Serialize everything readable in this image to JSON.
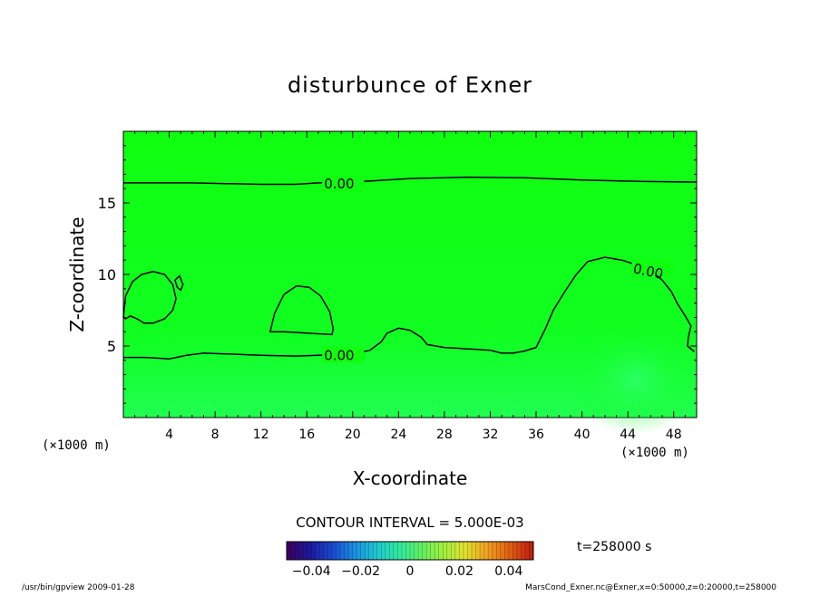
{
  "chart_data": {
    "type": "contour",
    "title": "disturbunce of Exner",
    "xlabel": "X-coordinate",
    "ylabel": "Z-coordinate",
    "x_unit_left": "(×1000 m)",
    "x_unit_right": "(×1000 m)",
    "xlim": [
      0,
      50
    ],
    "ylim": [
      0,
      20
    ],
    "x_ticks": [
      4,
      8,
      12,
      16,
      20,
      24,
      28,
      32,
      36,
      40,
      44,
      48
    ],
    "y_ticks": [
      5,
      10,
      15
    ],
    "background_color": "#00ff00",
    "contour_interval_text": "CONTOUR INTERVAL = 5.000E-03",
    "contours": [
      {
        "name": "upper-zero-line",
        "level_label": "0.00",
        "closed": false,
        "points": [
          [
            0,
            16.4
          ],
          [
            3,
            16.4
          ],
          [
            6,
            16.4
          ],
          [
            9,
            16.35
          ],
          [
            12,
            16.3
          ],
          [
            15,
            16.3
          ],
          [
            17,
            16.4
          ],
          [
            21,
            16.5
          ],
          [
            25,
            16.7
          ],
          [
            30,
            16.8
          ],
          [
            35,
            16.75
          ],
          [
            40,
            16.6
          ],
          [
            45,
            16.5
          ],
          [
            50,
            16.45
          ]
        ],
        "label_at": [
          17.5,
          16.4
        ]
      },
      {
        "name": "lower-zero-line",
        "level_label": "0.00",
        "closed": false,
        "points": [
          [
            0,
            4.2
          ],
          [
            2,
            4.2
          ],
          [
            4,
            4.1
          ],
          [
            5.5,
            4.35
          ],
          [
            7,
            4.5
          ],
          [
            9,
            4.45
          ],
          [
            12,
            4.35
          ],
          [
            15,
            4.3
          ],
          [
            17,
            4.35
          ],
          [
            20,
            4.45
          ],
          [
            21.5,
            4.7
          ],
          [
            22.5,
            5.3
          ],
          [
            23,
            5.9
          ],
          [
            24,
            6.25
          ],
          [
            25,
            6.1
          ],
          [
            26,
            5.6
          ],
          [
            26.5,
            5.1
          ],
          [
            28,
            4.9
          ],
          [
            31,
            4.75
          ],
          [
            32,
            4.7
          ],
          [
            33,
            4.5
          ],
          [
            34,
            4.5
          ],
          [
            35,
            4.65
          ],
          [
            36,
            4.9
          ],
          [
            36.8,
            6.2
          ],
          [
            37.5,
            7.5
          ],
          [
            38.5,
            8.8
          ],
          [
            39.5,
            10.0
          ],
          [
            40.5,
            10.9
          ],
          [
            42,
            11.2
          ],
          [
            43.5,
            11.0
          ],
          [
            45,
            10.6
          ],
          [
            46,
            10.3
          ],
          [
            47,
            9.6
          ],
          [
            47.8,
            8.8
          ],
          [
            48.3,
            8.0
          ],
          [
            49,
            7.1
          ],
          [
            49.5,
            6.4
          ],
          [
            49.3,
            5.7
          ],
          [
            49.2,
            5.0
          ],
          [
            49.8,
            4.6
          ]
        ],
        "label_at": [
          17.5,
          4.4
        ],
        "label2_at": [
          44.5,
          10.5
        ]
      },
      {
        "name": "left-closed-contour",
        "level_label": "",
        "closed": true,
        "points": [
          [
            0,
            7.0
          ],
          [
            0.2,
            8.5
          ],
          [
            0.8,
            9.5
          ],
          [
            1.6,
            10.0
          ],
          [
            2.6,
            10.2
          ],
          [
            3.6,
            10.0
          ],
          [
            4.3,
            9.3
          ],
          [
            4.6,
            8.3
          ],
          [
            4.3,
            7.5
          ],
          [
            3.6,
            6.9
          ],
          [
            2.6,
            6.6
          ],
          [
            1.8,
            6.6
          ],
          [
            1.2,
            6.9
          ],
          [
            0.6,
            7.1
          ],
          [
            0.2,
            6.9
          ]
        ]
      },
      {
        "name": "left-small-contour",
        "level_label": "",
        "closed": true,
        "points": [
          [
            4.5,
            9.6
          ],
          [
            4.9,
            9.9
          ],
          [
            5.2,
            9.3
          ],
          [
            5.0,
            8.9
          ],
          [
            4.7,
            9.1
          ]
        ]
      },
      {
        "name": "middle-dome-contour",
        "level_label": "",
        "closed": true,
        "points": [
          [
            12.8,
            6.0
          ],
          [
            13.2,
            7.3
          ],
          [
            14.0,
            8.6
          ],
          [
            15.1,
            9.2
          ],
          [
            16.2,
            9.1
          ],
          [
            17.2,
            8.5
          ],
          [
            18.0,
            7.4
          ],
          [
            18.3,
            6.2
          ],
          [
            18.2,
            5.8
          ],
          [
            16.0,
            5.9
          ],
          [
            14.0,
            6.0
          ],
          [
            12.8,
            6.0
          ]
        ]
      }
    ],
    "colorbar": {
      "tick_labels": [
        "−0.04",
        "−0.02",
        "0",
        "0.02",
        "0.04"
      ],
      "tick_values": [
        -0.04,
        -0.02,
        0,
        0.02,
        0.04
      ],
      "range": [
        -0.05,
        0.05
      ],
      "colors": [
        "#3a0060",
        "#1a1aa0",
        "#1a4ad0",
        "#1a90e0",
        "#20c8d0",
        "#30e8a0",
        "#60f060",
        "#a0f040",
        "#e0e030",
        "#f0a020",
        "#e06010",
        "#c02010"
      ]
    }
  },
  "annotations": {
    "time": "t=258000 s",
    "footer_left": "/usr/bin/gpview   2009-01-28",
    "footer_right": "MarsCond_Exner.nc@Exner,x=0:50000,z=0:20000,t=258000"
  }
}
